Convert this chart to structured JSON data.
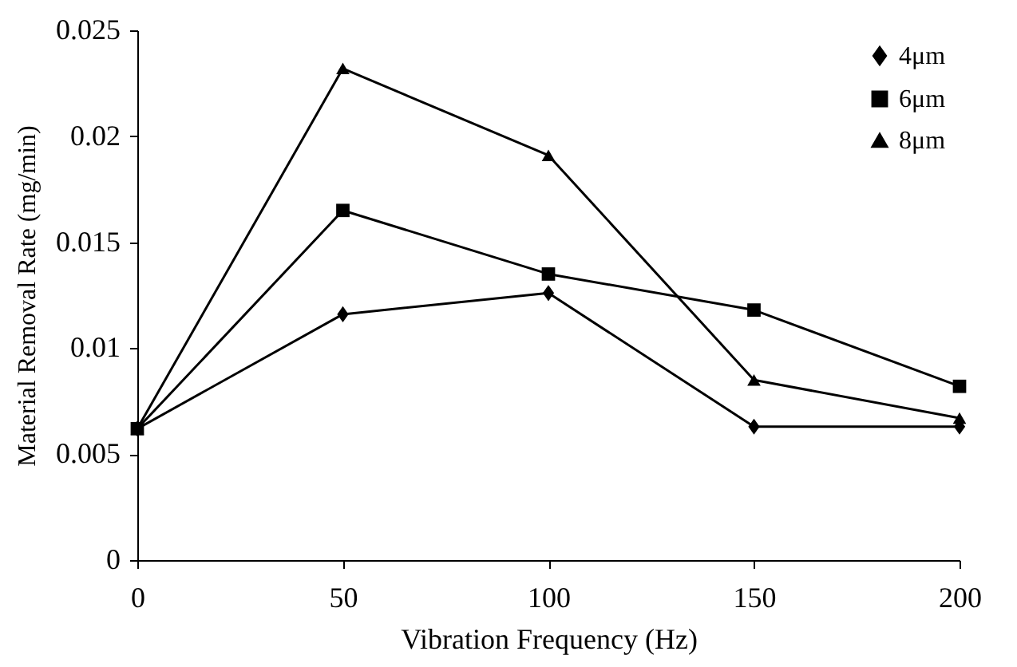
{
  "chart_data": {
    "type": "line",
    "xlabel": "Vibration Frequency (Hz)",
    "ylabel": "Material Removal Rate (mg/min)",
    "x": [
      0,
      50,
      100,
      150,
      200
    ],
    "xlim": [
      0,
      200
    ],
    "xticks": [
      0,
      50,
      100,
      150,
      200
    ],
    "ylim": [
      0,
      0.025
    ],
    "yticks": [
      0,
      0.005,
      0.01,
      0.015,
      0.02,
      0.025
    ],
    "grid": false,
    "legend": "top right",
    "line_style": "solid",
    "series": [
      {
        "name": "4μm",
        "color": "#000000",
        "marker": "diamond",
        "values": [
          0.0062,
          0.0116,
          0.0126,
          0.0063,
          0.0063
        ]
      },
      {
        "name": "6μm",
        "color": "#000000",
        "marker": "square",
        "values": [
          0.0062,
          0.0165,
          0.0135,
          0.0118,
          0.0082
        ]
      },
      {
        "name": "8μm",
        "color": "#000000",
        "marker": "triangle",
        "values": [
          0.0062,
          0.0232,
          0.0191,
          0.0085,
          0.0067
        ]
      }
    ]
  }
}
